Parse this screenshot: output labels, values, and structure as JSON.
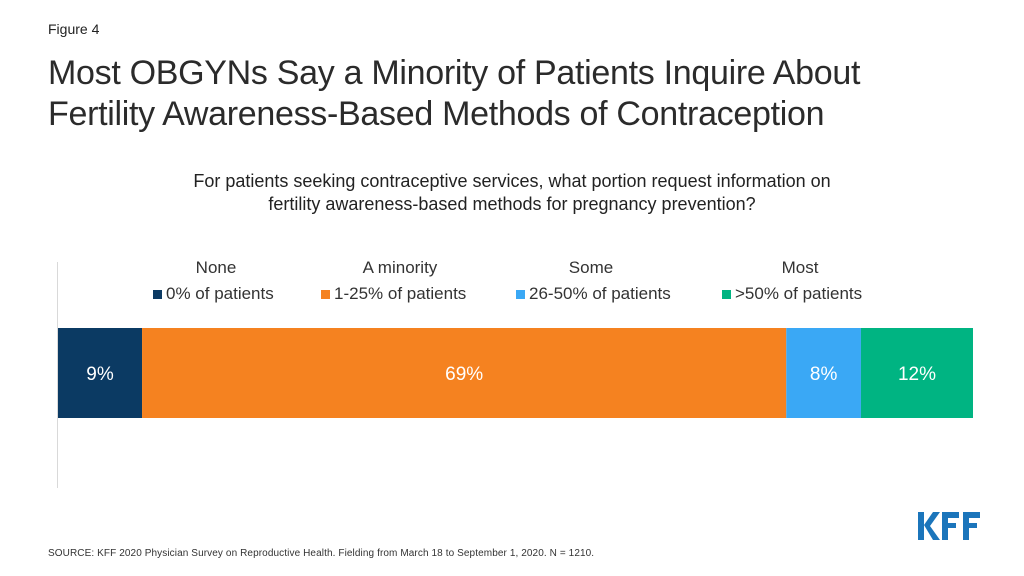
{
  "figure_label": "Figure 4",
  "title_line1": "Most OBGYNs Say a Minority of Patients Inquire About",
  "title_line2": "Fertility Awareness-Based Methods of Contraception",
  "chart_data": {
    "type": "bar",
    "orientation": "horizontal",
    "stacked": true,
    "subtitle_line1": "For patients seeking contraceptive services, what portion request information on",
    "subtitle_line2": "fertility awareness-based methods for pregnancy prevention?",
    "categories": [
      ""
    ],
    "series": [
      {
        "name": "0% of patients",
        "group": "None",
        "values": [
          9
        ],
        "label": "9%",
        "color": "#0b3a63"
      },
      {
        "name": "1-25% of patients",
        "group": "A minority",
        "values": [
          69
        ],
        "label": "69%",
        "color": "#f58220"
      },
      {
        "name": "26-50% of patients",
        "group": "Some",
        "values": [
          8
        ],
        "label": "8%",
        "color": "#3aa8f5"
      },
      {
        "name": ">50% of patients",
        "group": "Most",
        "values": [
          12
        ],
        "label": "12%",
        "color": "#00b482"
      }
    ],
    "xlim": [
      0,
      98
    ],
    "grid": false,
    "legend_position": "top"
  },
  "source": "SOURCE: KFF 2020 Physician Survey on Reproductive Health. Fielding from March 18 to September 1, 2020. N = 1210.",
  "logo_text": "KFF",
  "brand_color": "#1b75bb"
}
